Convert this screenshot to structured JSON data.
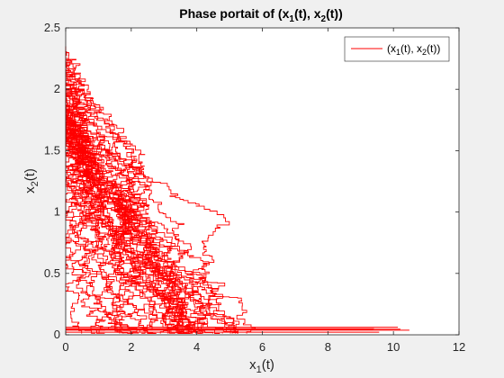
{
  "chart_data": {
    "type": "line",
    "title": "Phase portait of (x₁(t), x₂(t))",
    "title_parts": [
      "Phase portait of (x",
      "1",
      "(t), x",
      "2",
      "(t))"
    ],
    "xlabel_parts": [
      "x",
      "1",
      "(t)"
    ],
    "ylabel_parts": [
      "x",
      "2",
      "(t)"
    ],
    "xlim": [
      0,
      12
    ],
    "ylim": [
      0,
      2.5
    ],
    "xticks": [
      "0",
      "2",
      "4",
      "6",
      "8",
      "10",
      "12"
    ],
    "yticks": [
      "0",
      "0.5",
      "1",
      "1.5",
      "2",
      "2.5"
    ],
    "grid": false,
    "legend_position": "top-right",
    "series": [
      {
        "name": "(x₁(t), x₂(t))",
        "name_parts": [
          "(x",
          "1",
          "(t), x",
          "2",
          "(t))"
        ],
        "color": "#ff0000",
        "envelope": {
          "x": [
            0.0,
            0.2,
            0.5,
            1.0,
            1.5,
            2.0,
            2.5,
            3.0,
            3.5,
            4.0,
            4.5,
            5.0,
            5.5,
            6.0,
            6.5,
            7.0,
            8.0,
            9.0,
            10.0,
            10.7
          ],
          "y_upper": [
            2.35,
            2.3,
            2.2,
            1.9,
            1.85,
            1.75,
            1.7,
            1.6,
            1.5,
            1.35,
            1.25,
            1.05,
            0.8,
            0.6,
            0.45,
            0.35,
            0.2,
            0.1,
            0.05,
            0.02
          ]
        },
        "x_max": 10.7,
        "y_max": 2.35,
        "trajectory_count": 40
      }
    ]
  }
}
